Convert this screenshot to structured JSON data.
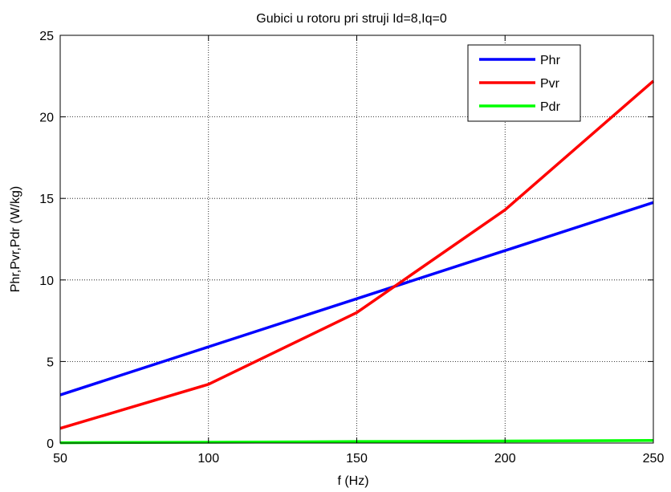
{
  "chart_data": {
    "type": "line",
    "title": "Gubici u rotoru pri struji Id=8,Iq=0",
    "xlabel": "f (Hz)",
    "ylabel": "Phr,Pvr,Pdr (W/kg)",
    "xlim": [
      50,
      250
    ],
    "ylim": [
      0,
      25
    ],
    "x_ticks": [
      50,
      100,
      150,
      200,
      250
    ],
    "y_ticks": [
      0,
      5,
      10,
      15,
      20,
      25
    ],
    "grid": true,
    "legend_position": "top-right",
    "x": [
      50,
      100,
      150,
      200,
      250
    ],
    "series": [
      {
        "name": "Phr",
        "color": "#0000ff",
        "values": [
          2.95,
          5.9,
          8.85,
          11.8,
          14.75
        ]
      },
      {
        "name": "Pvr",
        "color": "#ff0000",
        "values": [
          0.9,
          3.6,
          8.0,
          14.3,
          22.2
        ]
      },
      {
        "name": "Pdr",
        "color": "#00ff00",
        "values": [
          0.02,
          0.05,
          0.09,
          0.12,
          0.16
        ]
      }
    ]
  }
}
